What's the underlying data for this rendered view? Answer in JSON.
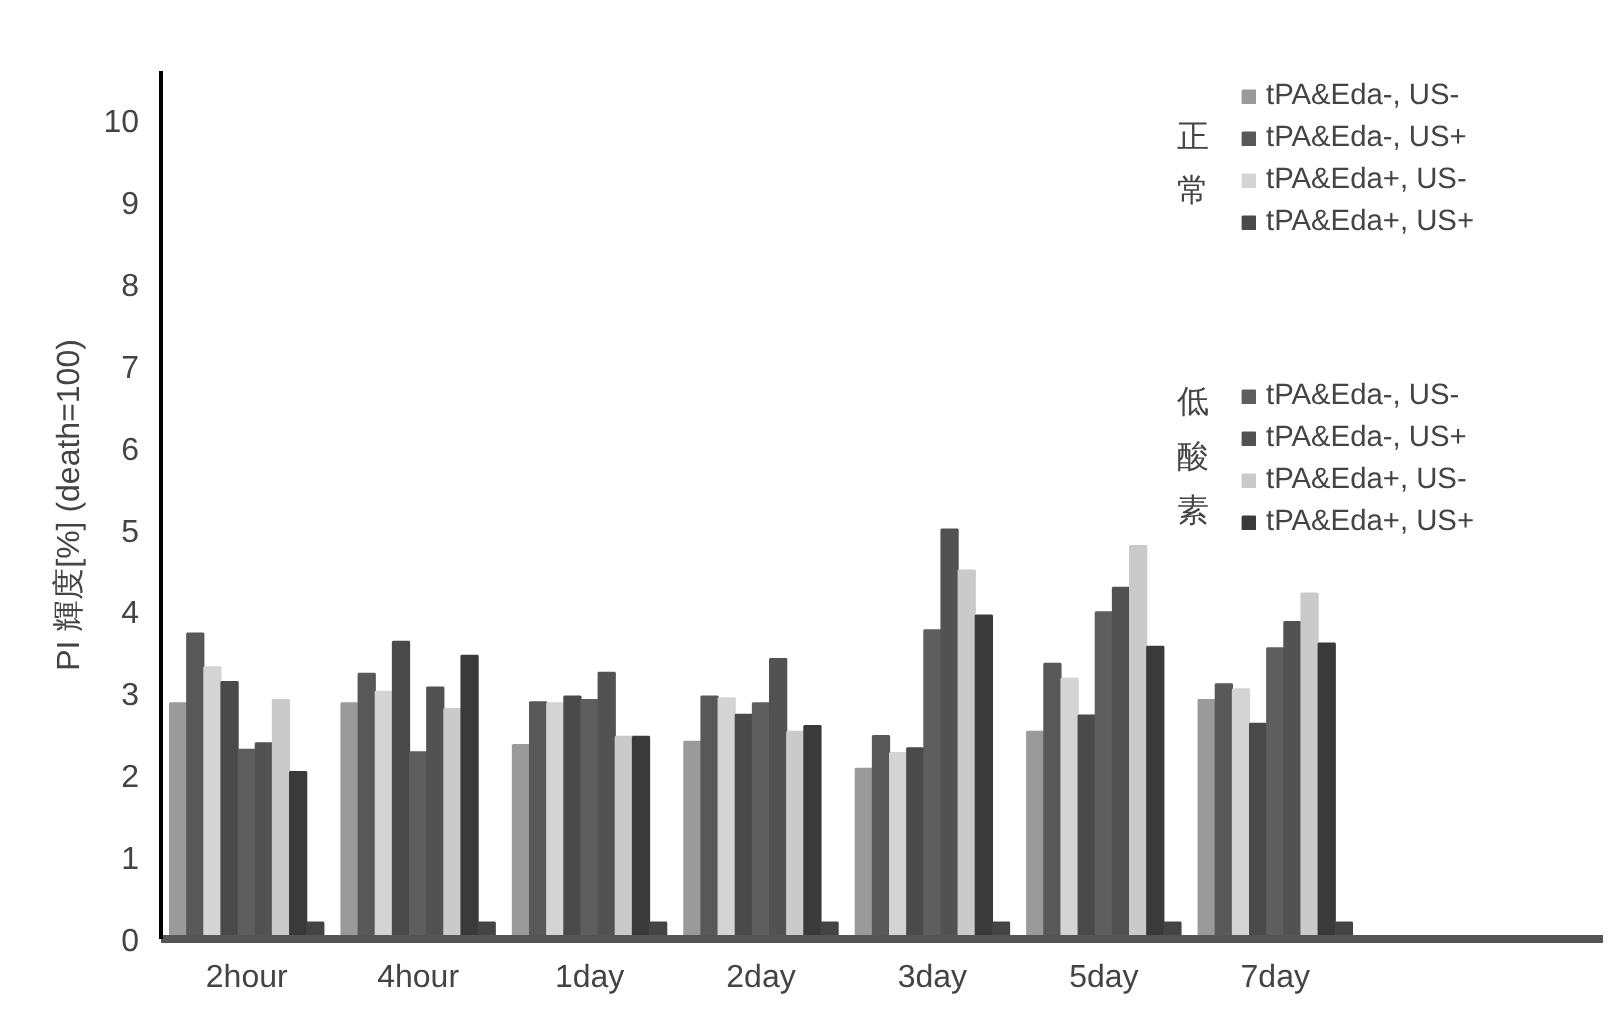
{
  "chart_data": {
    "type": "bar",
    "ylabel": "PI 輝度[%] (death=100)",
    "categories": [
      "2hour",
      "4hour",
      "1day",
      "2day",
      "3day",
      "5day",
      "7day"
    ],
    "ylim": [
      0,
      10.6
    ],
    "yticks": [
      0,
      1,
      2,
      3,
      4,
      5,
      6,
      7,
      8,
      9,
      10
    ],
    "grid": false,
    "legend": "right",
    "annotations": [
      "正常",
      "低酸素"
    ],
    "series": [
      {
        "name": "tPA&Eda-, US-",
        "color": "#9a9a9a",
        "values": [
          2.88,
          2.88,
          2.37,
          2.41,
          2.08,
          2.53,
          2.92
        ]
      },
      {
        "name": "tPA&Eda-, US+",
        "color": "#585858",
        "values": [
          3.73,
          3.24,
          2.89,
          2.96,
          2.48,
          3.36,
          3.11
        ]
      },
      {
        "name": "tPA&Eda+, US-",
        "color": "#d4d4d4",
        "values": [
          3.32,
          3.02,
          2.88,
          2.94,
          2.27,
          3.18,
          3.05
        ]
      },
      {
        "name": "tPA&Eda+, US+",
        "color": "#4a4a4a",
        "values": [
          3.14,
          3.63,
          2.96,
          2.74,
          2.33,
          2.73,
          2.63
        ]
      },
      {
        "name": "tPA&Eda-, US-",
        "color": "#5e5e5e",
        "values": [
          2.31,
          2.28,
          2.92,
          2.88,
          3.77,
          3.99,
          3.55
        ]
      },
      {
        "name": "tPA&Eda-, US+",
        "color": "#525252",
        "values": [
          2.39,
          3.07,
          3.25,
          3.42,
          5.0,
          4.29,
          3.87
        ]
      },
      {
        "name": "tPA&Eda+, US-",
        "color": "#cacaca",
        "values": [
          2.92,
          2.81,
          2.47,
          2.53,
          4.5,
          4.8,
          4.22
        ]
      },
      {
        "name": "tPA&Eda+, US+",
        "color": "#3a3a3a",
        "values": [
          2.04,
          3.46,
          2.47,
          2.6,
          3.95,
          3.57,
          3.61
        ]
      },
      {
        "color": "#444444",
        "values": [
          0.2,
          0.2,
          0.2,
          0.2,
          0.2,
          0.2,
          0.2
        ]
      }
    ]
  }
}
